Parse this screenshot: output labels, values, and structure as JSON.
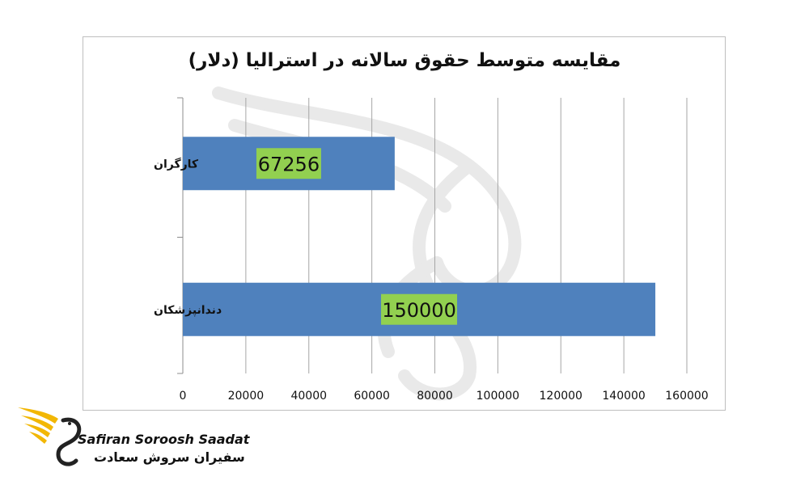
{
  "chart_data": {
    "type": "bar",
    "orientation": "horizontal",
    "title": "مقایسه متوسط حقوق سالانه در استرالیا (دلار)",
    "categories": [
      "کارگران",
      "دندانپزشکان"
    ],
    "values": [
      67256,
      150000
    ],
    "data_labels": [
      "67256",
      "150000"
    ],
    "x_ticks": [
      "0",
      "20000",
      "40000",
      "60000",
      "80000",
      "100000",
      "120000",
      "140000",
      "160000"
    ],
    "xlim": [
      0,
      160000
    ],
    "grid": "vertical",
    "legend": "none",
    "colors": {
      "bar": "#4f81bd",
      "label_bg": "#92d050",
      "grid": "#a6a6a6"
    }
  },
  "brand": {
    "name_en": "Safiran Soroosh Saadat",
    "name_fa": "سفیران سروش سعادت",
    "logo_icon": "gold-wings-swan-logo"
  }
}
